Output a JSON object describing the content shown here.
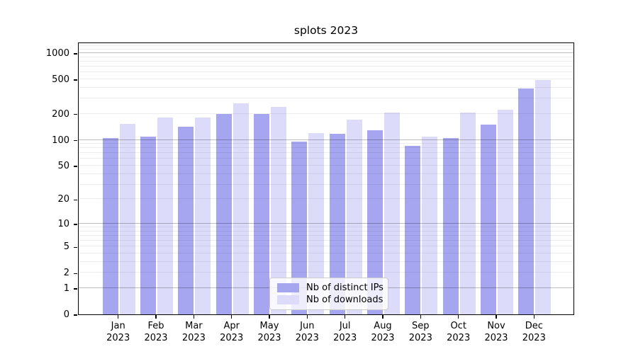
{
  "chart_data": {
    "type": "bar",
    "title": "splots 2023",
    "categories": [
      "Jan",
      "Feb",
      "Mar",
      "Apr",
      "May",
      "Jun",
      "Jul",
      "Aug",
      "Sep",
      "Oct",
      "Nov",
      "Dec"
    ],
    "x_tick_year": "2023",
    "series": [
      {
        "name": "Nb of distinct IPs",
        "color": "#a5a5f0",
        "values": [
          104,
          110,
          143,
          200,
          201,
          95,
          117,
          130,
          85,
          104,
          150,
          390
        ]
      },
      {
        "name": "Nb of downloads",
        "color": "#dcdcfa",
        "values": [
          154,
          183,
          182,
          262,
          241,
          120,
          172,
          207,
          110,
          207,
          223,
          487
        ]
      }
    ],
    "y_axis": {
      "scale": "log1p",
      "tick_values": [
        0,
        1,
        2,
        5,
        10,
        20,
        50,
        100,
        200,
        500,
        1000
      ],
      "minor_grid_values": [
        2,
        3,
        4,
        5,
        6,
        7,
        8,
        9,
        20,
        30,
        40,
        50,
        60,
        70,
        80,
        90,
        200,
        300,
        400,
        500,
        600,
        700,
        800,
        900,
        1100,
        1200,
        1300
      ],
      "major_grid_values": [
        1,
        10,
        100,
        1000
      ],
      "ylim": [
        0,
        1350
      ],
      "grid": true
    },
    "legend": {
      "position": "lower center",
      "entries": [
        "Nb of distinct IPs",
        "Nb of downloads"
      ]
    },
    "colors": {
      "spine": "#000000",
      "background": "#ffffff"
    }
  }
}
